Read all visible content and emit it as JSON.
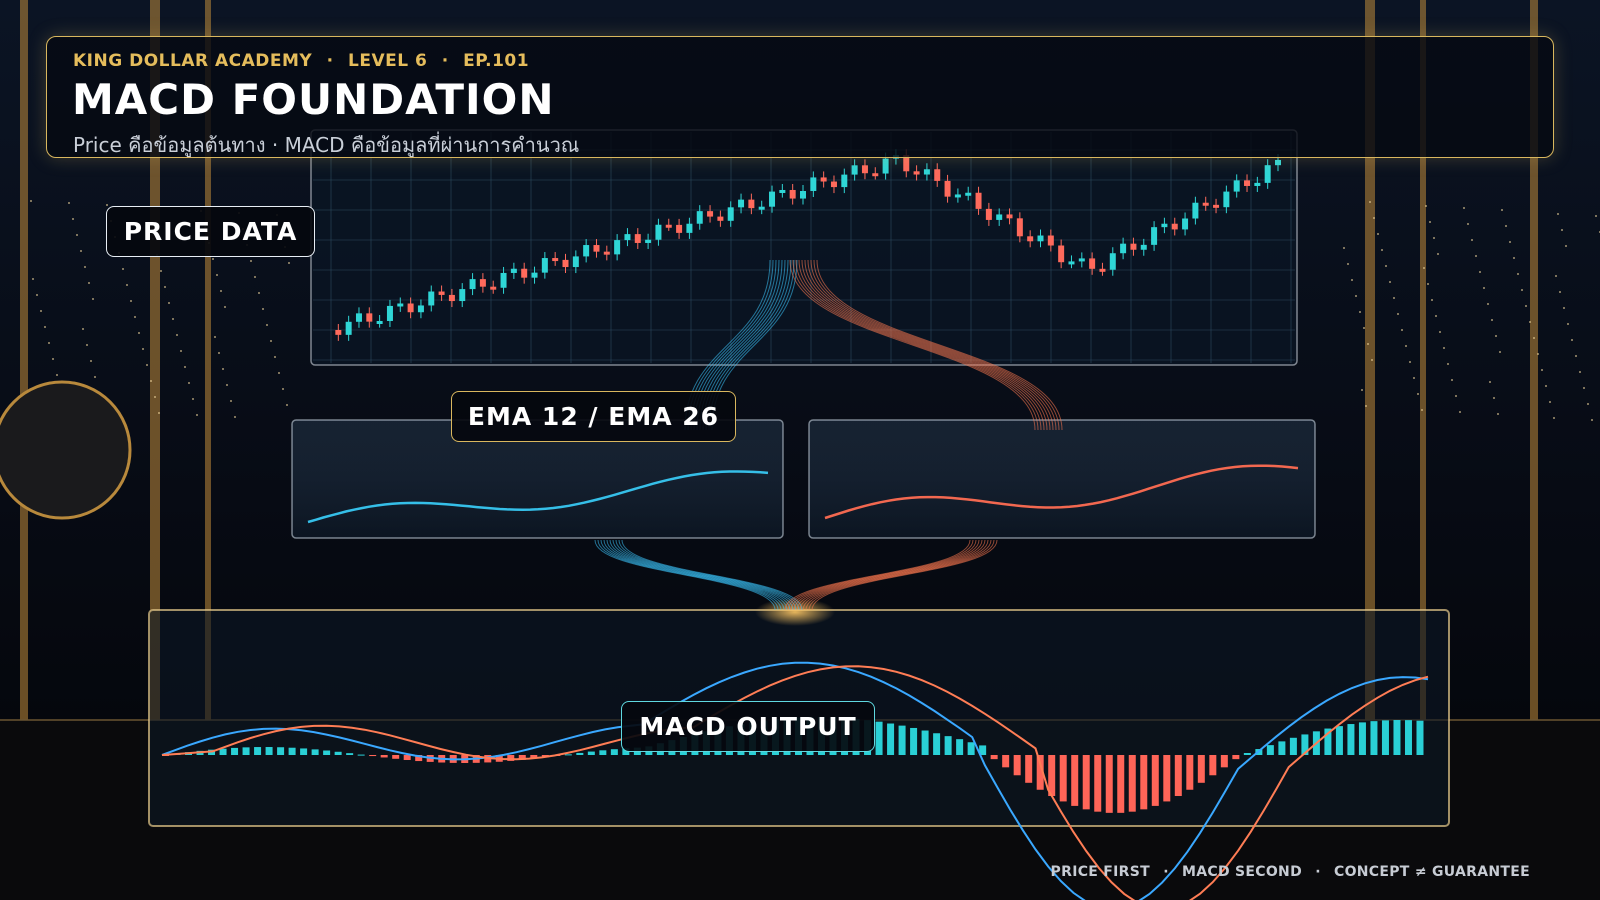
{
  "header": {
    "breadcrumb": [
      "KING DOLLAR ACADEMY",
      "LEVEL 6",
      "EP.101"
    ],
    "separator": "·",
    "title": "MACD FOUNDATION",
    "subtitle": "Price คือข้อมูลต้นทาง · MACD คือข้อมูลที่ผ่านการคำนวณ"
  },
  "panels": {
    "price": "PRICE DATA",
    "ema": "EMA 12 / EMA 26",
    "macd": "MACD OUTPUT"
  },
  "footer": {
    "items": [
      "PRICE FIRST",
      "MACD SECOND",
      "CONCEPT ≠ GUARANTEE"
    ],
    "separator": "·"
  }
}
